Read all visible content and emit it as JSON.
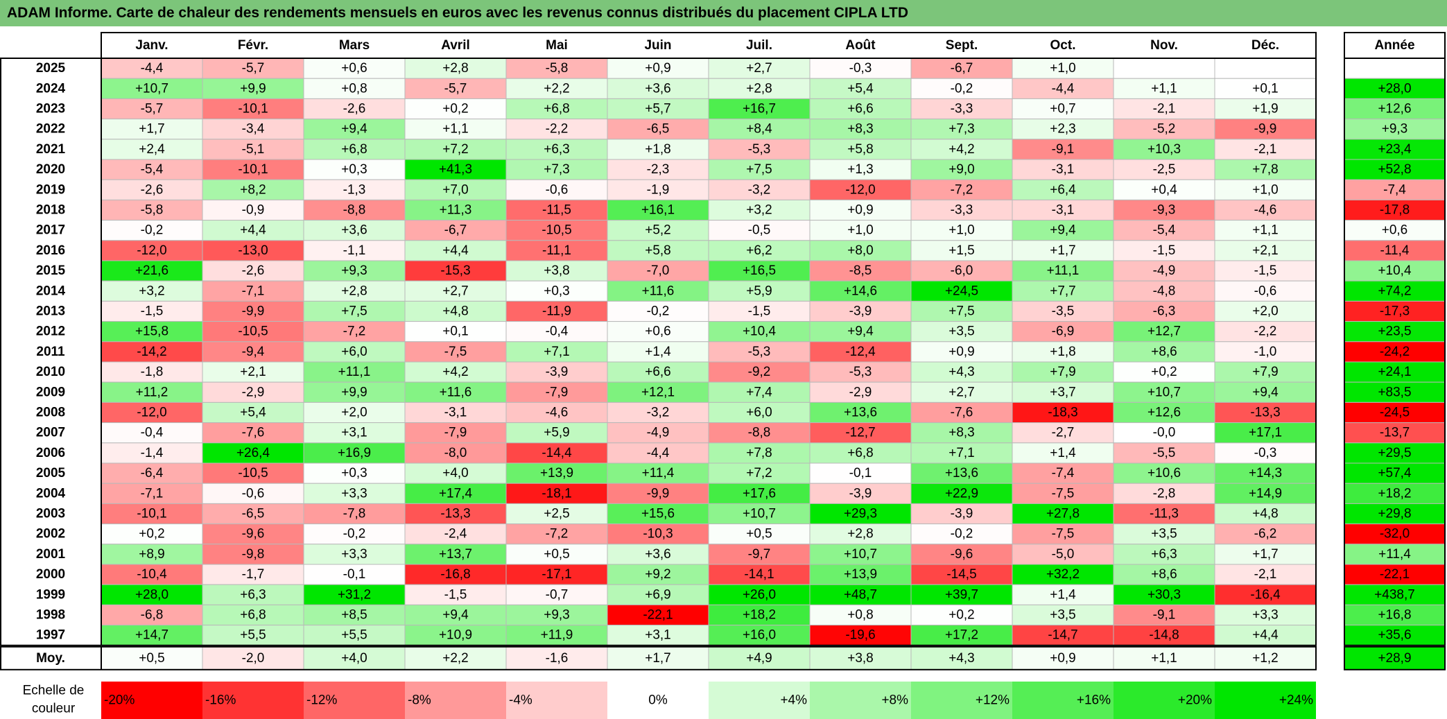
{
  "title": "ADAM Informe. Carte de chaleur des rendements mensuels en euros avec les revenus connus distribués du placement CIPLA LTD",
  "chart_data": {
    "type": "heatmap",
    "months": [
      "Janv.",
      "Févr.",
      "Mars",
      "Avril",
      "Mai",
      "Juin",
      "Juil.",
      "Août",
      "Sept.",
      "Oct.",
      "Nov.",
      "Déc."
    ],
    "year_header": "Année",
    "rows": [
      {
        "year": "2025",
        "values": [
          -4.4,
          -5.7,
          0.6,
          2.8,
          -5.8,
          0.9,
          2.7,
          -0.3,
          -6.7,
          1.0,
          null,
          null
        ],
        "annual": null
      },
      {
        "year": "2024",
        "values": [
          10.7,
          9.9,
          0.8,
          -5.7,
          2.2,
          3.6,
          2.8,
          5.4,
          -0.2,
          -4.4,
          1.1,
          0.1
        ],
        "annual": 28.0
      },
      {
        "year": "2023",
        "values": [
          -5.7,
          -10.1,
          -2.6,
          0.2,
          6.8,
          5.7,
          16.7,
          6.6,
          -3.3,
          0.7,
          -2.1,
          1.9
        ],
        "annual": 12.6
      },
      {
        "year": "2022",
        "values": [
          1.7,
          -3.4,
          9.4,
          1.1,
          -2.2,
          -6.5,
          8.4,
          8.3,
          7.3,
          2.3,
          -5.2,
          -9.9
        ],
        "annual": 9.3
      },
      {
        "year": "2021",
        "values": [
          2.4,
          -5.1,
          6.8,
          7.2,
          6.3,
          1.8,
          -5.3,
          5.8,
          4.2,
          -9.1,
          10.3,
          -2.1
        ],
        "annual": 23.4
      },
      {
        "year": "2020",
        "values": [
          -5.4,
          -10.1,
          0.3,
          41.3,
          7.3,
          -2.3,
          7.5,
          1.3,
          9.0,
          -3.1,
          -2.5,
          7.8
        ],
        "annual": 52.8
      },
      {
        "year": "2019",
        "values": [
          -2.6,
          8.2,
          -1.3,
          7.0,
          -0.6,
          -1.9,
          -3.2,
          -12.0,
          -7.2,
          6.4,
          0.4,
          1.0
        ],
        "annual": -7.4
      },
      {
        "year": "2018",
        "values": [
          -5.8,
          -0.9,
          -8.8,
          11.3,
          -11.5,
          16.1,
          3.2,
          0.9,
          -3.3,
          -3.1,
          -9.3,
          -4.6
        ],
        "annual": -17.8
      },
      {
        "year": "2017",
        "values": [
          -0.2,
          4.4,
          3.6,
          -6.7,
          -10.5,
          5.2,
          -0.5,
          1.0,
          1.0,
          9.4,
          -5.4,
          1.1
        ],
        "annual": 0.6
      },
      {
        "year": "2016",
        "values": [
          -12.0,
          -13.0,
          -1.1,
          4.4,
          -11.1,
          5.8,
          6.2,
          8.0,
          1.5,
          1.7,
          -1.5,
          2.1
        ],
        "annual": -11.4
      },
      {
        "year": "2015",
        "values": [
          21.6,
          -2.6,
          9.3,
          -15.3,
          3.8,
          -7.0,
          16.5,
          -8.5,
          -6.0,
          11.1,
          -4.9,
          -1.5
        ],
        "annual": 10.4
      },
      {
        "year": "2014",
        "values": [
          3.2,
          -7.1,
          2.8,
          2.7,
          0.3,
          11.6,
          5.9,
          14.6,
          24.5,
          7.7,
          -4.8,
          -0.6
        ],
        "annual": 74.2
      },
      {
        "year": "2013",
        "values": [
          -1.5,
          -9.9,
          7.5,
          4.8,
          -11.9,
          -0.2,
          -1.5,
          -3.9,
          7.5,
          -3.5,
          -6.3,
          2.0
        ],
        "annual": -17.3
      },
      {
        "year": "2012",
        "values": [
          15.8,
          -10.5,
          -7.2,
          0.1,
          -0.4,
          0.6,
          10.4,
          9.4,
          3.5,
          -6.9,
          12.7,
          -2.2
        ],
        "annual": 23.5
      },
      {
        "year": "2011",
        "values": [
          -14.2,
          -9.4,
          6.0,
          -7.5,
          7.1,
          1.4,
          -5.3,
          -12.4,
          0.9,
          1.8,
          8.6,
          -1.0
        ],
        "annual": -24.2
      },
      {
        "year": "2010",
        "values": [
          -1.8,
          2.1,
          11.1,
          4.2,
          -3.9,
          6.6,
          -9.2,
          -5.3,
          4.3,
          7.9,
          0.2,
          7.9
        ],
        "annual": 24.1
      },
      {
        "year": "2009",
        "values": [
          11.2,
          -2.9,
          9.9,
          11.6,
          -7.9,
          12.1,
          7.4,
          -2.9,
          2.7,
          3.7,
          10.7,
          9.4
        ],
        "annual": 83.5
      },
      {
        "year": "2008",
        "values": [
          -12.0,
          5.4,
          2.0,
          -3.1,
          -4.6,
          -3.2,
          6.0,
          13.6,
          -7.6,
          -18.3,
          12.6,
          -13.3
        ],
        "annual": -24.5
      },
      {
        "year": "2007",
        "values": [
          -0.4,
          -7.6,
          3.1,
          -7.9,
          5.9,
          -4.9,
          -8.8,
          -12.7,
          8.3,
          -2.7,
          "-0,0",
          17.1
        ],
        "annual": -13.7
      },
      {
        "year": "2006",
        "values": [
          -1.4,
          26.4,
          16.9,
          -8.0,
          -14.4,
          -4.4,
          7.8,
          6.8,
          7.1,
          1.4,
          -5.5,
          -0.3
        ],
        "annual": 29.5
      },
      {
        "year": "2005",
        "values": [
          -6.4,
          -10.5,
          0.3,
          4.0,
          13.9,
          11.4,
          7.2,
          -0.1,
          13.6,
          -7.4,
          10.6,
          14.3
        ],
        "annual": 57.4
      },
      {
        "year": "2004",
        "values": [
          -7.1,
          -0.6,
          3.3,
          17.4,
          -18.1,
          -9.9,
          17.6,
          -3.9,
          22.9,
          -7.5,
          -2.8,
          14.9
        ],
        "annual": 18.2
      },
      {
        "year": "2003",
        "values": [
          -10.1,
          -6.5,
          -7.8,
          -13.3,
          2.5,
          15.6,
          10.7,
          29.3,
          -3.9,
          27.8,
          -11.3,
          4.8
        ],
        "annual": 29.8
      },
      {
        "year": "2002",
        "values": [
          0.2,
          -9.6,
          -0.2,
          -2.4,
          -7.2,
          -10.3,
          0.5,
          2.8,
          -0.2,
          -7.5,
          3.5,
          -6.2
        ],
        "annual": -32.0
      },
      {
        "year": "2001",
        "values": [
          8.9,
          -9.8,
          3.3,
          13.7,
          0.5,
          3.6,
          -9.7,
          10.7,
          -9.6,
          -5.0,
          6.3,
          1.7
        ],
        "annual": 11.4
      },
      {
        "year": "2000",
        "values": [
          -10.4,
          -1.7,
          -0.1,
          -16.8,
          -17.1,
          9.2,
          -14.1,
          13.9,
          -14.5,
          32.2,
          8.6,
          -2.1
        ],
        "annual": -22.1
      },
      {
        "year": "1999",
        "values": [
          28.0,
          6.3,
          31.2,
          -1.5,
          -0.7,
          6.9,
          26.0,
          48.7,
          39.7,
          1.4,
          30.3,
          -16.4
        ],
        "annual": 438.7
      },
      {
        "year": "1998",
        "values": [
          -6.8,
          6.8,
          8.5,
          9.4,
          9.3,
          -22.1,
          18.2,
          0.8,
          0.2,
          3.5,
          -9.1,
          3.3
        ],
        "annual": 16.8
      },
      {
        "year": "1997",
        "values": [
          14.7,
          5.5,
          5.5,
          10.9,
          11.9,
          3.1,
          16.0,
          -19.6,
          17.2,
          -14.7,
          -14.8,
          4.4
        ],
        "annual": 35.6
      }
    ],
    "average": {
      "label": "Moy.",
      "values": [
        0.5,
        -2.0,
        4.0,
        2.2,
        -1.6,
        1.7,
        4.9,
        3.8,
        4.3,
        0.9,
        1.1,
        1.2
      ],
      "annual": 28.9
    },
    "scale": {
      "label_line1": "Echelle de",
      "label_line2": "couleur",
      "stops": [
        {
          "label": "-20%",
          "value": -20
        },
        {
          "label": "-16%",
          "value": -16
        },
        {
          "label": "-12%",
          "value": -12
        },
        {
          "label": "-8%",
          "value": -8
        },
        {
          "label": "-4%",
          "value": -4
        },
        {
          "label": "0%",
          "value": 0
        },
        {
          "label": "+4%",
          "value": 4
        },
        {
          "label": "+8%",
          "value": 8
        },
        {
          "label": "+12%",
          "value": 12
        },
        {
          "label": "+16%",
          "value": 16
        },
        {
          "label": "+20%",
          "value": 20
        },
        {
          "label": "+24%",
          "value": 24
        }
      ]
    },
    "colors": {
      "negative": "#ff0000",
      "neutral": "#ffffff",
      "positive": "#00e600",
      "title_bar": "#7cc57a"
    }
  }
}
